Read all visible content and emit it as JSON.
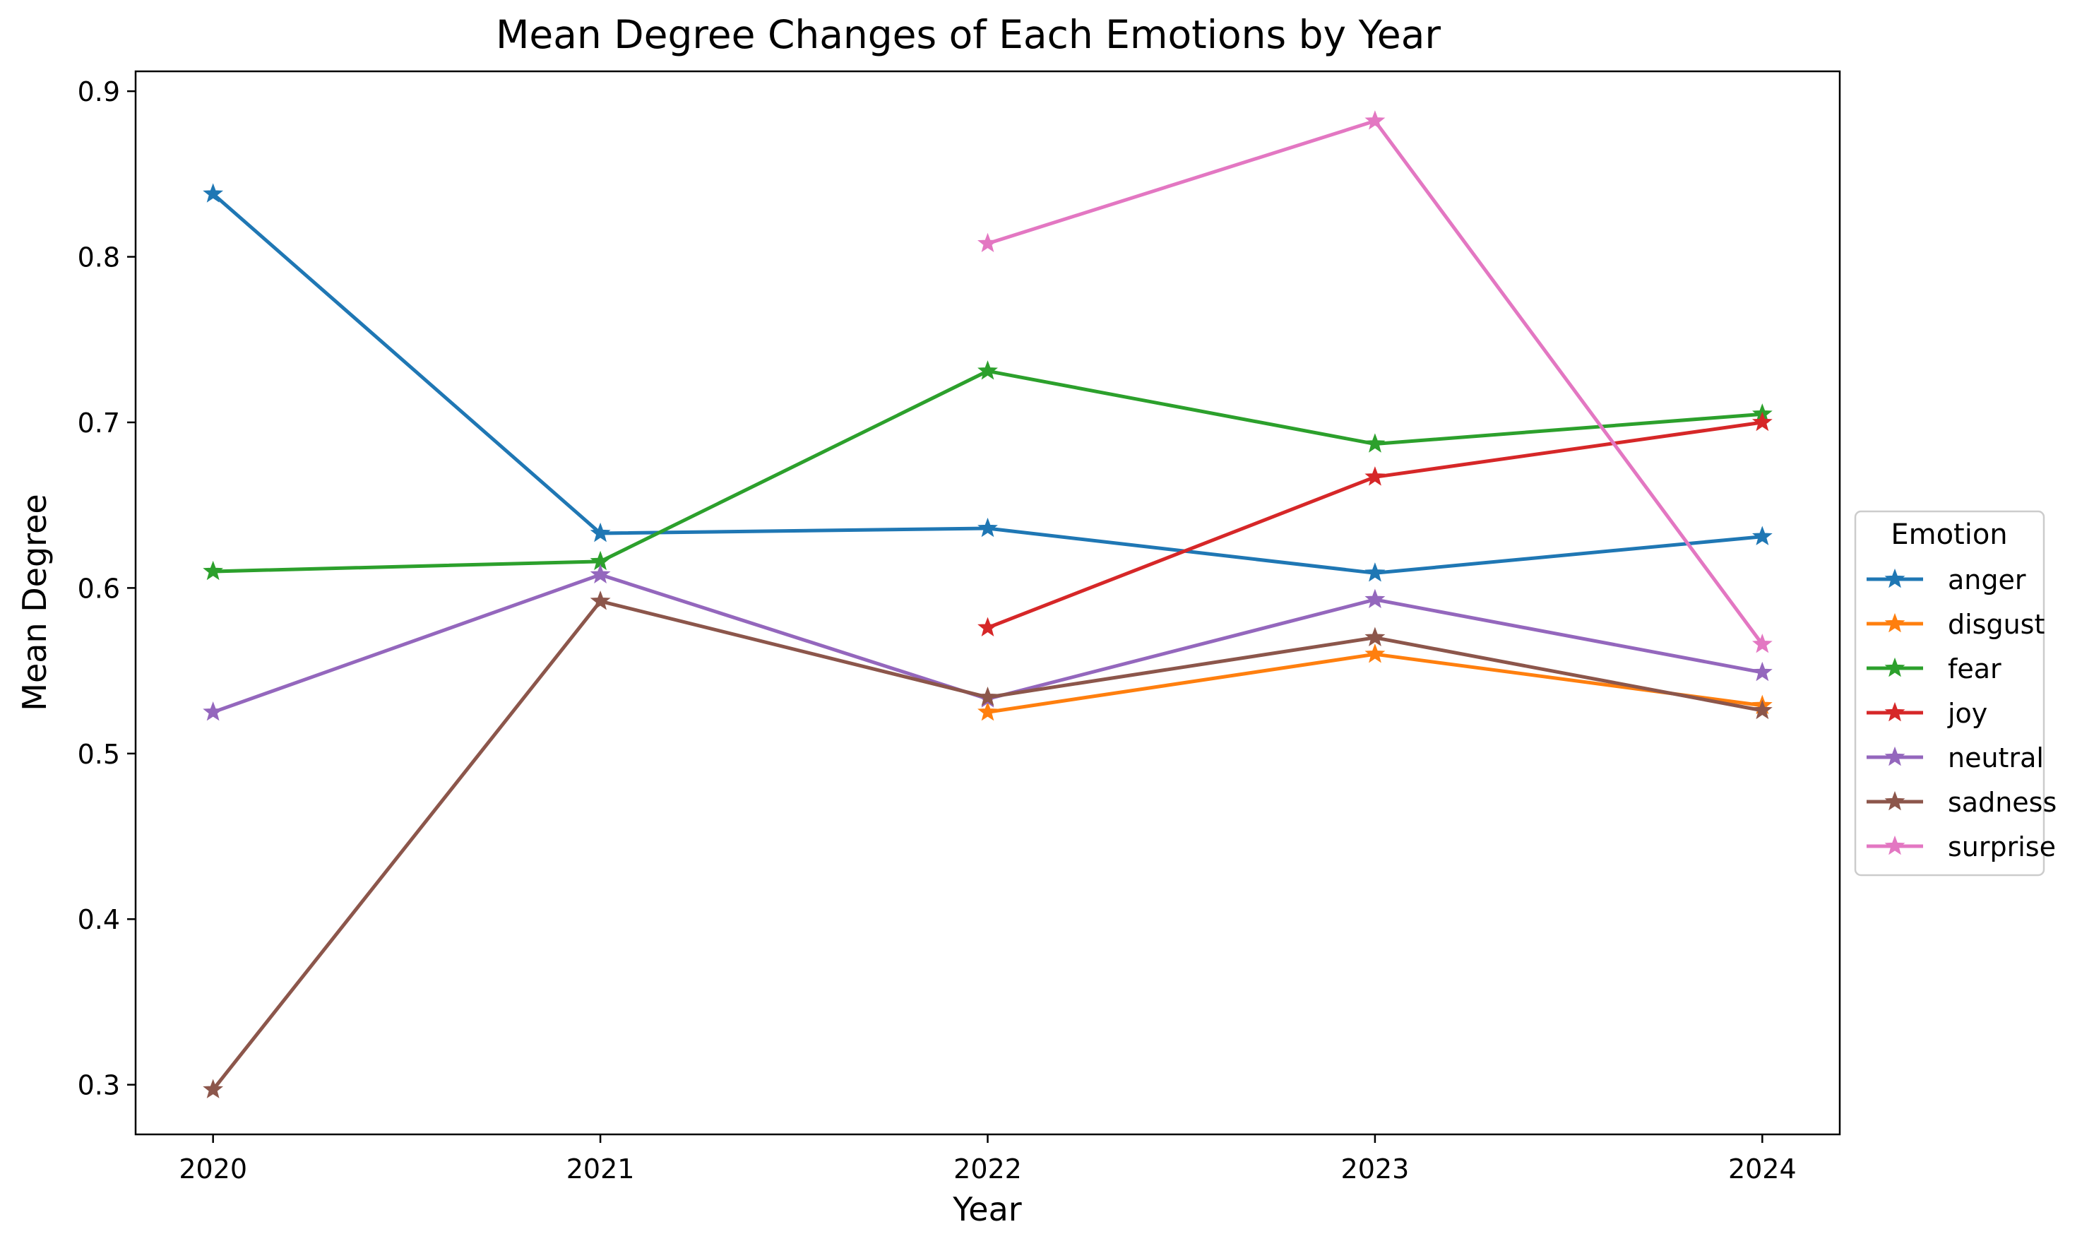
{
  "chart_data": {
    "type": "line",
    "title": "Mean Degree Changes of Each Emotions by Year",
    "xlabel": "Year",
    "ylabel": "Mean Degree",
    "x": [
      "2020",
      "2021",
      "2022",
      "2023",
      "2024"
    ],
    "xlim": [
      2019.8,
      2024.2
    ],
    "ylim": [
      0.27,
      0.912
    ],
    "yticks": [
      "0.3",
      "0.4",
      "0.5",
      "0.6",
      "0.7",
      "0.8",
      "0.9"
    ],
    "grid": false,
    "marker": "star",
    "legend": {
      "title": "Emotion",
      "placement": "center-right-outside"
    },
    "series": [
      {
        "name": "anger",
        "color": "#1f77b4",
        "values": [
          0.838,
          0.633,
          0.636,
          0.609,
          0.631
        ]
      },
      {
        "name": "disgust",
        "color": "#ff7f0e",
        "values": [
          null,
          null,
          0.525,
          0.56,
          0.529
        ]
      },
      {
        "name": "fear",
        "color": "#2ca02c",
        "values": [
          0.61,
          0.616,
          0.731,
          0.687,
          0.705
        ]
      },
      {
        "name": "joy",
        "color": "#d62728",
        "values": [
          null,
          null,
          0.576,
          0.667,
          0.7
        ]
      },
      {
        "name": "neutral",
        "color": "#9467bd",
        "values": [
          0.525,
          0.608,
          0.533,
          0.593,
          0.549
        ]
      },
      {
        "name": "sadness",
        "color": "#8c564b",
        "values": [
          0.297,
          0.592,
          0.534,
          0.57,
          0.526
        ]
      },
      {
        "name": "surprise",
        "color": "#e377c2",
        "values": [
          null,
          null,
          0.808,
          0.882,
          0.566
        ]
      }
    ]
  }
}
